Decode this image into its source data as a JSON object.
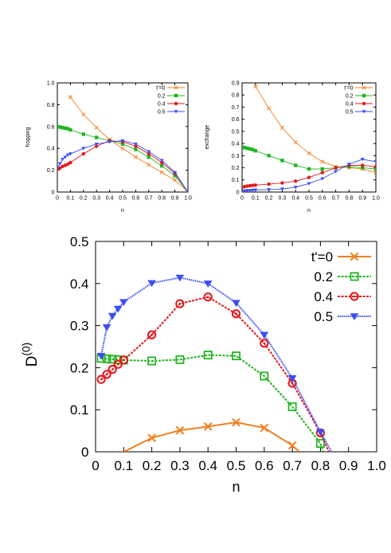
{
  "chart_data": [
    {
      "id": "hopping",
      "type": "line",
      "xlabel": "n",
      "ylabel": "hopping",
      "xlim": [
        0,
        1
      ],
      "ylim": [
        0,
        1
      ],
      "xticks": [
        "0",
        "0.1",
        "0.2",
        "0.3",
        "0.4",
        "0.5",
        "0.6",
        "0.7",
        "0.8",
        "0.9",
        "1.0"
      ],
      "yticks": [
        "0",
        "0.2",
        "0.4",
        "0.6",
        "0.8",
        "1.0"
      ],
      "legend_position": "top-right",
      "series": [
        {
          "name": "t'=0",
          "color": "#f07f1f",
          "marker": "cross",
          "x": [
            0.1,
            0.2,
            0.3,
            0.4,
            0.5,
            0.6,
            0.7,
            0.8,
            0.9,
            1.0
          ],
          "y": [
            0.87,
            0.71,
            0.59,
            0.48,
            0.4,
            0.32,
            0.25,
            0.18,
            0.11,
            0.0
          ]
        },
        {
          "name": "0.2",
          "color": "#22b422",
          "marker": "square",
          "x": [
            0.0,
            0.02,
            0.04,
            0.06,
            0.08,
            0.1,
            0.2,
            0.3,
            0.4,
            0.5,
            0.6,
            0.7,
            0.8,
            0.9,
            1.0
          ],
          "y": [
            0.6,
            0.595,
            0.59,
            0.585,
            0.58,
            0.57,
            0.53,
            0.5,
            0.47,
            0.44,
            0.39,
            0.32,
            0.24,
            0.15,
            0.0
          ]
        },
        {
          "name": "0.4",
          "color": "#e41a1c",
          "marker": "dot",
          "x": [
            0.0,
            0.02,
            0.04,
            0.06,
            0.08,
            0.1,
            0.2,
            0.3,
            0.4,
            0.5,
            0.6,
            0.7,
            0.8,
            0.9,
            1.0
          ],
          "y": [
            0.21,
            0.22,
            0.235,
            0.245,
            0.255,
            0.27,
            0.35,
            0.42,
            0.47,
            0.46,
            0.42,
            0.35,
            0.27,
            0.17,
            0.0
          ]
        },
        {
          "name": "0.5",
          "color": "#3a4df5",
          "marker": "triangle",
          "x": [
            0.0,
            0.02,
            0.04,
            0.06,
            0.08,
            0.1,
            0.2,
            0.3,
            0.4,
            0.5,
            0.6,
            0.7,
            0.8,
            0.9,
            1.0
          ],
          "y": [
            0.22,
            0.26,
            0.3,
            0.32,
            0.34,
            0.35,
            0.4,
            0.44,
            0.46,
            0.47,
            0.44,
            0.37,
            0.29,
            0.18,
            0.0
          ]
        }
      ]
    },
    {
      "id": "exchange",
      "type": "line",
      "xlabel": "n",
      "ylabel": "exchange",
      "xlim": [
        0,
        1
      ],
      "ylim": [
        0,
        0.9
      ],
      "xticks": [
        "0",
        "0.1",
        "0.2",
        "0.3",
        "0.4",
        "0.5",
        "0.6",
        "0.7",
        "0.8",
        "0.9",
        "1.0"
      ],
      "yticks": [
        "0",
        "0.1",
        "0.2",
        "0.3",
        "0.4",
        "0.5",
        "0.6",
        "0.7",
        "0.8",
        "0.9"
      ],
      "legend_position": "top-right",
      "series": [
        {
          "name": "t'=0",
          "color": "#f07f1f",
          "marker": "cross",
          "x": [
            0.1,
            0.2,
            0.3,
            0.4,
            0.5,
            0.6,
            0.7,
            0.8,
            0.9,
            1.0
          ],
          "y": [
            0.87,
            0.69,
            0.53,
            0.41,
            0.32,
            0.25,
            0.21,
            0.2,
            0.19,
            0.16
          ]
        },
        {
          "name": "0.2",
          "color": "#22b422",
          "marker": "square",
          "x": [
            0.0,
            0.02,
            0.04,
            0.06,
            0.08,
            0.1,
            0.2,
            0.3,
            0.4,
            0.5,
            0.6,
            0.7,
            0.8,
            0.9,
            1.0
          ],
          "y": [
            0.37,
            0.366,
            0.36,
            0.355,
            0.35,
            0.34,
            0.3,
            0.26,
            0.22,
            0.19,
            0.19,
            0.2,
            0.21,
            0.2,
            0.19
          ]
        },
        {
          "name": "0.4",
          "color": "#e41a1c",
          "marker": "dot",
          "x": [
            0.0,
            0.02,
            0.04,
            0.06,
            0.08,
            0.1,
            0.2,
            0.3,
            0.4,
            0.5,
            0.6,
            0.7,
            0.8,
            0.9,
            1.0
          ],
          "y": [
            0.04,
            0.045,
            0.05,
            0.052,
            0.055,
            0.057,
            0.065,
            0.075,
            0.09,
            0.12,
            0.16,
            0.2,
            0.22,
            0.22,
            0.21
          ]
        },
        {
          "name": "0.5",
          "color": "#3a4df5",
          "marker": "triangle",
          "x": [
            0.0,
            0.02,
            0.04,
            0.06,
            0.08,
            0.1,
            0.2,
            0.3,
            0.4,
            0.5,
            0.6,
            0.7,
            0.8,
            0.9,
            1.0
          ],
          "y": [
            0.01,
            0.01,
            0.012,
            0.013,
            0.015,
            0.017,
            0.02,
            0.025,
            0.04,
            0.07,
            0.11,
            0.17,
            0.23,
            0.27,
            0.25
          ]
        }
      ]
    },
    {
      "id": "d0",
      "type": "line",
      "xlabel": "n",
      "ylabel": "D",
      "ylabel_sup": "(0)",
      "xlim": [
        0,
        1
      ],
      "ylim": [
        0,
        0.5
      ],
      "xticks": [
        "0",
        "0.1",
        "0.2",
        "0.3",
        "0.4",
        "0.5",
        "0.6",
        "0.7",
        "0.8",
        "0.9",
        "1.0"
      ],
      "yticks": [
        "0",
        "0.1",
        "0.2",
        "0.3",
        "0.4",
        "0.5"
      ],
      "legend_position": "top-right",
      "series": [
        {
          "name": "t'=0",
          "color": "#f07f1f",
          "marker": "cross",
          "x": [
            0.2,
            0.3,
            0.4,
            0.5,
            0.6,
            0.7
          ],
          "y": [
            0.033,
            0.051,
            0.06,
            0.07,
            0.057,
            0.015
          ],
          "line_x": [
            0.1,
            0.2,
            0.3,
            0.4,
            0.5,
            0.6,
            0.7,
            0.725
          ],
          "line_y": [
            0.0,
            0.033,
            0.051,
            0.06,
            0.07,
            0.057,
            0.015,
            0.0
          ]
        },
        {
          "name": "0.2",
          "color": "#22b422",
          "marker": "open-square",
          "x": [
            0.02,
            0.04,
            0.06,
            0.08,
            0.1,
            0.2,
            0.3,
            0.4,
            0.5,
            0.6,
            0.7,
            0.8
          ],
          "y": [
            0.222,
            0.221,
            0.22,
            0.219,
            0.218,
            0.216,
            0.219,
            0.23,
            0.228,
            0.18,
            0.107,
            0.02
          ],
          "line_x": [
            0.02,
            0.04,
            0.06,
            0.08,
            0.1,
            0.2,
            0.3,
            0.4,
            0.5,
            0.6,
            0.7,
            0.8,
            0.81
          ],
          "line_y": [
            0.222,
            0.221,
            0.22,
            0.219,
            0.218,
            0.216,
            0.219,
            0.23,
            0.228,
            0.18,
            0.107,
            0.02,
            0.0
          ]
        },
        {
          "name": "0.4",
          "color": "#e41a1c",
          "marker": "open-circle",
          "x": [
            0.02,
            0.04,
            0.06,
            0.08,
            0.1,
            0.2,
            0.3,
            0.4,
            0.5,
            0.6,
            0.7,
            0.8
          ],
          "y": [
            0.172,
            0.184,
            0.196,
            0.208,
            0.218,
            0.278,
            0.352,
            0.368,
            0.328,
            0.258,
            0.163,
            0.045
          ],
          "line_x": [
            0.02,
            0.04,
            0.06,
            0.08,
            0.1,
            0.2,
            0.3,
            0.4,
            0.5,
            0.6,
            0.7,
            0.8,
            0.83
          ],
          "line_y": [
            0.172,
            0.184,
            0.196,
            0.208,
            0.218,
            0.278,
            0.352,
            0.368,
            0.328,
            0.258,
            0.163,
            0.045,
            0.0
          ]
        },
        {
          "name": "0.5",
          "color": "#3a4df5",
          "marker": "triangle",
          "x": [
            0.02,
            0.04,
            0.06,
            0.08,
            0.1,
            0.2,
            0.3,
            0.4,
            0.5,
            0.6,
            0.7,
            0.8
          ],
          "y": [
            0.228,
            0.296,
            0.323,
            0.34,
            0.356,
            0.401,
            0.414,
            0.4,
            0.354,
            0.278,
            0.175,
            0.047
          ],
          "line_x": [
            0.02,
            0.04,
            0.06,
            0.08,
            0.1,
            0.2,
            0.3,
            0.4,
            0.5,
            0.6,
            0.7,
            0.8,
            0.84
          ],
          "line_y": [
            0.228,
            0.296,
            0.323,
            0.34,
            0.356,
            0.401,
            0.414,
            0.4,
            0.354,
            0.278,
            0.175,
            0.047,
            0.0
          ]
        }
      ]
    }
  ]
}
